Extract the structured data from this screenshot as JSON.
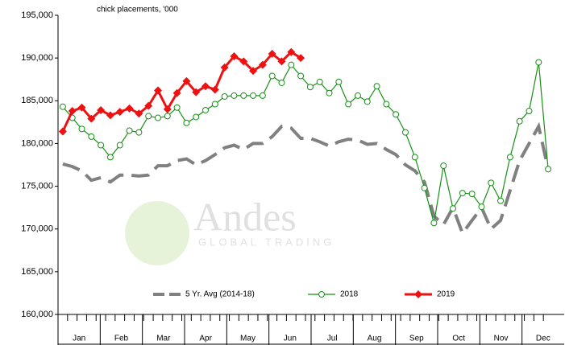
{
  "chart_data": {
    "type": "line",
    "title": "chick placements, '000",
    "watermark": {
      "name": "Andes",
      "tagline": "GLOBAL TRADING"
    },
    "categories": [
      null,
      null,
      null,
      null,
      null,
      null,
      null,
      null,
      null,
      null,
      null,
      null,
      null,
      null,
      null,
      null,
      null,
      null,
      null,
      null,
      null,
      null,
      null,
      null,
      null,
      null,
      null,
      null,
      null,
      null,
      null,
      null,
      null,
      null,
      null,
      null,
      null,
      null,
      null,
      null,
      null,
      null,
      null,
      null,
      null,
      null,
      null,
      null,
      null,
      null,
      null,
      null
    ],
    "months": [
      "Jan",
      "Feb",
      "Mar",
      "Apr",
      "May",
      "Jun",
      "Jul",
      "Aug",
      "Sep",
      "Oct",
      "Nov",
      "Dec"
    ],
    "series": [
      {
        "name": "5 Yr. Avg (2014-18)",
        "color": "#808080",
        "style": "dashed",
        "values": [
          177600,
          177300,
          176800,
          175700,
          176000,
          175500,
          176300,
          176300,
          176200,
          176300,
          177400,
          177400,
          178000,
          178200,
          177500,
          178000,
          178700,
          179500,
          179800,
          179300,
          180000,
          180000,
          180800,
          182000,
          181800,
          180600,
          180600,
          180200,
          179700,
          180200,
          180500,
          180400,
          179900,
          180000,
          179300,
          178700,
          177500,
          176800,
          175500,
          171500,
          170500,
          172500,
          169500,
          171000,
          172500,
          170000,
          171000,
          174500,
          178000,
          180000,
          182000,
          177000
        ]
      },
      {
        "name": "2018",
        "color": "#169016",
        "style": "open-circle",
        "values": [
          184300,
          183000,
          181700,
          180800,
          179800,
          178400,
          179800,
          181500,
          181300,
          183200,
          183000,
          183200,
          184200,
          182400,
          183100,
          183900,
          184600,
          185500,
          185600,
          185600,
          185600,
          185600,
          187900,
          187100,
          189200,
          187900,
          186600,
          187200,
          185900,
          187200,
          184600,
          185600,
          184900,
          186700,
          184600,
          183400,
          181300,
          178400,
          174800,
          170700,
          177400,
          172400,
          174200,
          174100,
          172600,
          175400,
          173300,
          178400,
          182600,
          183800,
          189500,
          177000
        ]
      },
      {
        "name": "2019",
        "color": "#ee1111",
        "style": "diamond",
        "values": [
          181400,
          183800,
          184200,
          182900,
          183900,
          183300,
          183700,
          184100,
          183500,
          184400,
          186200,
          184000,
          185900,
          187300,
          186000,
          186700,
          186300,
          188900,
          190200,
          189600,
          188500,
          189200,
          190500,
          189600,
          190700,
          190000,
          null,
          null,
          null,
          null,
          null,
          null,
          null,
          null,
          null,
          null,
          null,
          null,
          null,
          null,
          null,
          null,
          null,
          null,
          null,
          null,
          null,
          null,
          null,
          null,
          null,
          null
        ]
      }
    ],
    "ylim": [
      160000,
      195000
    ],
    "yticks": [
      {
        "value": 160000,
        "label": "160,000"
      },
      {
        "value": 165000,
        "label": "165,000"
      },
      {
        "value": 170000,
        "label": "170,000"
      },
      {
        "value": 175000,
        "label": "175,000"
      },
      {
        "value": 180000,
        "label": "180,000"
      },
      {
        "value": 185000,
        "label": "185,000"
      },
      {
        "value": 190000,
        "label": "190,000"
      },
      {
        "value": 195000,
        "label": "195,000"
      }
    ],
    "grid": false,
    "legend": "bottom"
  }
}
